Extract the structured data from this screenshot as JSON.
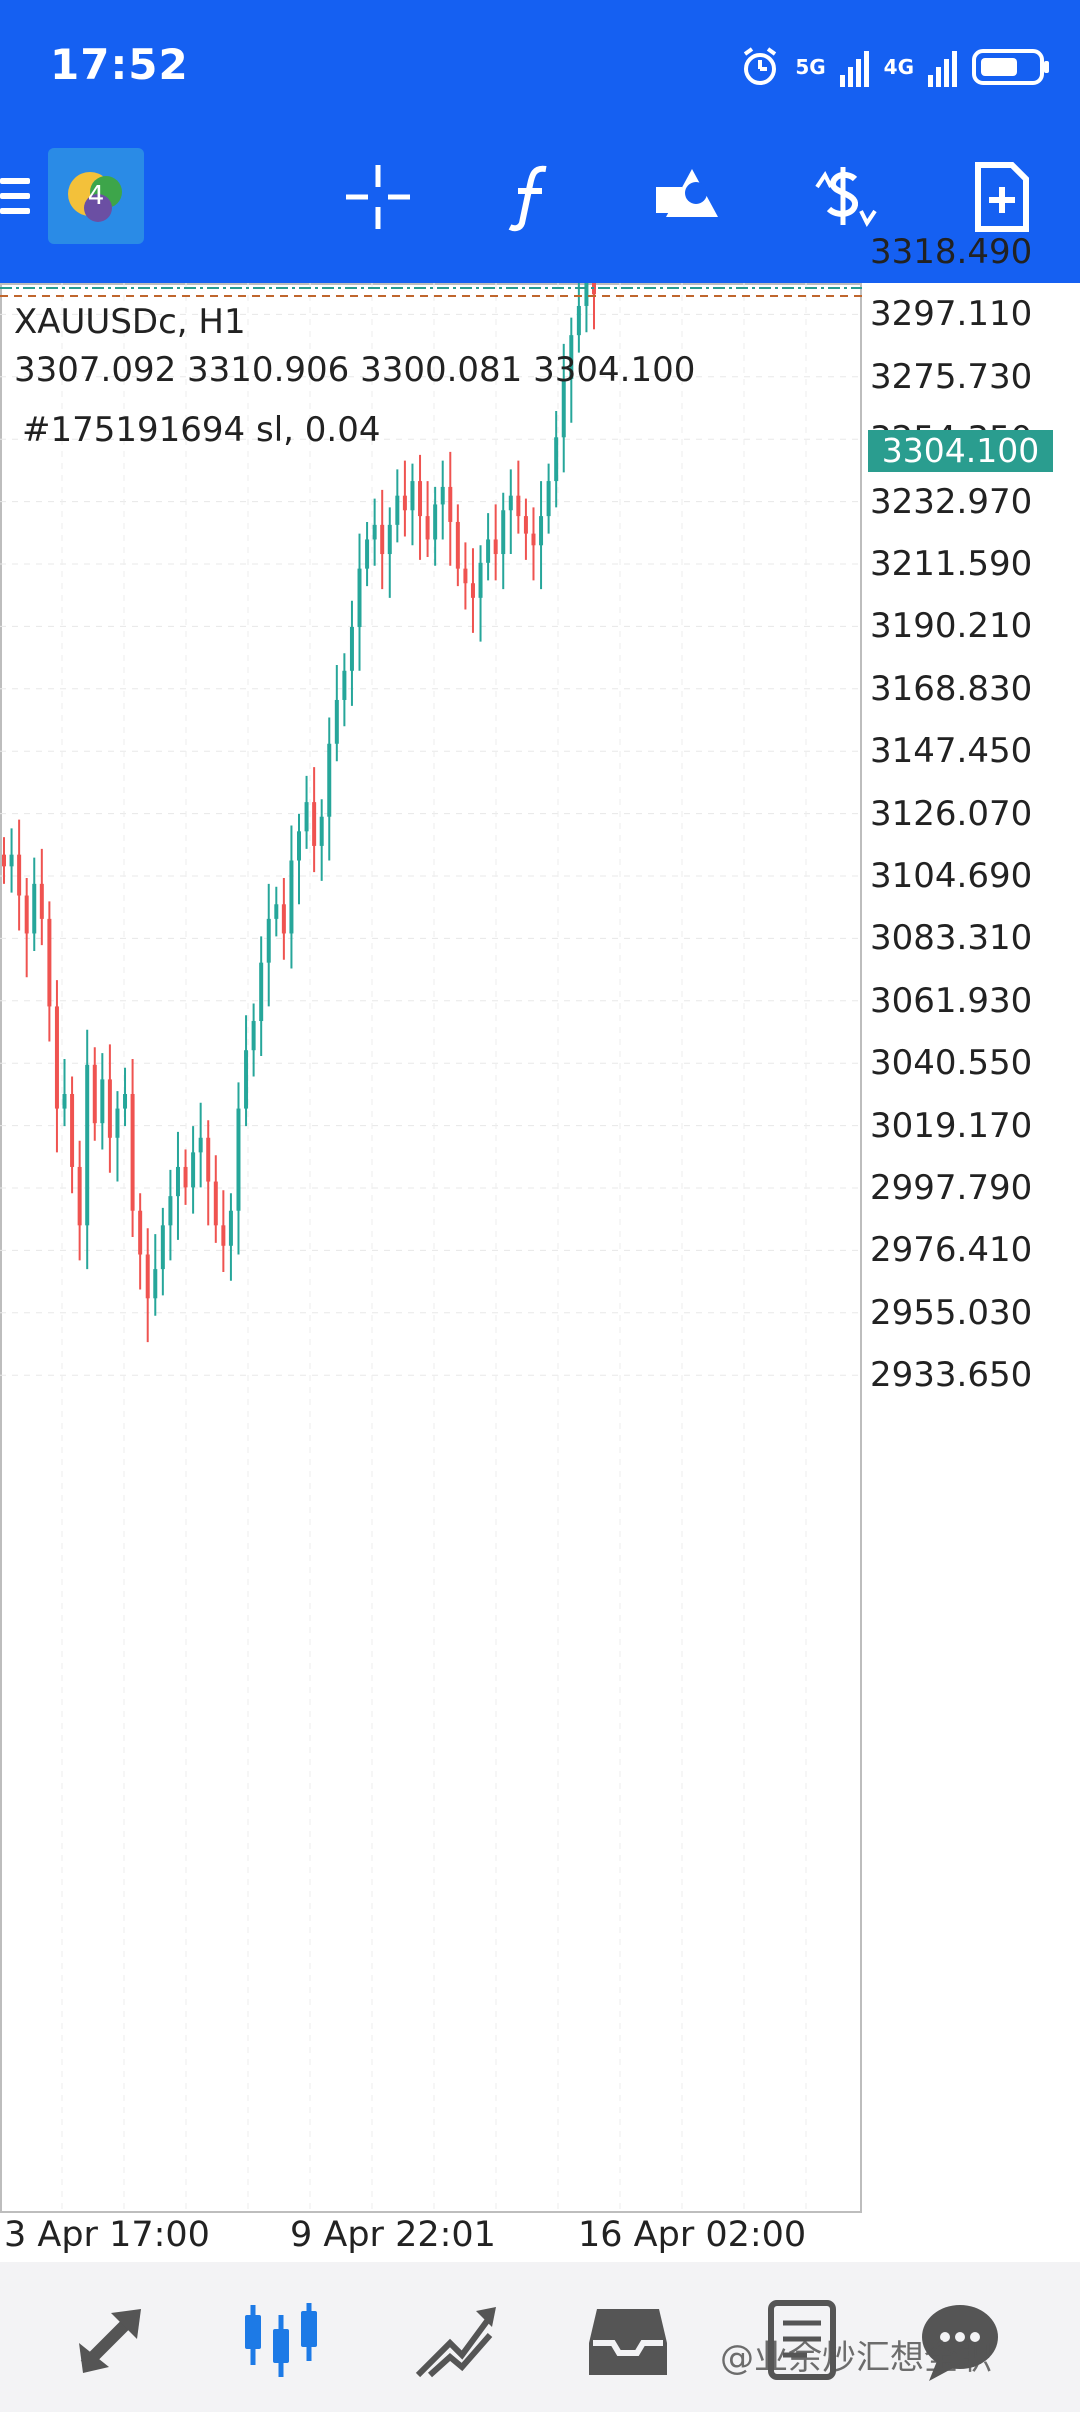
{
  "status_bar": {
    "time": "17:52",
    "network_1": "5G",
    "network_2": "4G",
    "icons": [
      "alarm-icon",
      "signal-icon",
      "signal-icon",
      "battery-icon"
    ]
  },
  "toolbar": {
    "buttons": [
      {
        "name": "menu-button",
        "icon": "hamburger-icon"
      },
      {
        "name": "app-logo",
        "icon": "mt4-logo-icon"
      },
      {
        "name": "crosshair-button",
        "icon": "crosshair-icon"
      },
      {
        "name": "indicators-button",
        "icon": "function-icon"
      },
      {
        "name": "objects-button",
        "icon": "shapes-icon"
      },
      {
        "name": "symbol-change-button",
        "icon": "dollar-icon"
      },
      {
        "name": "new-order-button",
        "icon": "new-document-icon"
      }
    ]
  },
  "chart": {
    "symbol_label": "XAUUSDc, H1",
    "ohlc_label": "3307.092 3310.906 3300.081 3304.100",
    "order_label": "#175191694 sl, 0.04",
    "current_price": "3304.100",
    "up_color": "#26a69a",
    "down_color": "#ef5350"
  },
  "chart_data": {
    "type": "candlestick",
    "price_ticks": [
      "3318.490",
      "3297.110",
      "3275.730",
      "3254.350",
      "3232.970",
      "3211.590",
      "3190.210",
      "3168.830",
      "3147.450",
      "3126.070",
      "3104.690",
      "3083.310",
      "3061.930",
      "3040.550",
      "3019.170",
      "2997.790",
      "2976.410",
      "2955.030",
      "2933.650"
    ],
    "time_ticks": [
      "3 Apr 17:00",
      "9 Apr 22:01",
      "16 Apr 02:00"
    ],
    "ylim": [
      2920,
      3330
    ],
    "close_path": [
      3108,
      3112,
      3098,
      3085,
      3102,
      3090,
      3060,
      3025,
      3030,
      3005,
      2985,
      3040,
      3020,
      3035,
      3015,
      3025,
      3030,
      2990,
      2975,
      2960,
      2970,
      2985,
      2995,
      3005,
      2998,
      3010,
      3015,
      3000,
      2985,
      2978,
      2990,
      3025,
      3045,
      3055,
      3075,
      3090,
      3095,
      3085,
      3110,
      3120,
      3130,
      3115,
      3125,
      3150,
      3165,
      3175,
      3190,
      3210,
      3220,
      3225,
      3215,
      3225,
      3235,
      3230,
      3240,
      3228,
      3220,
      3232,
      3238,
      3226,
      3210,
      3205,
      3200,
      3212,
      3220,
      3215,
      3230,
      3235,
      3228,
      3222,
      3218,
      3228,
      3240,
      3255,
      3275,
      3290,
      3300,
      3310,
      3304
    ]
  },
  "time_axis": [
    "3 Apr 17:00",
    "9 Apr 22:01",
    "16 Apr 02:00"
  ],
  "bottom_nav": {
    "items": [
      {
        "name": "quotes-tab",
        "icon": "quotes-icon"
      },
      {
        "name": "chart-tab",
        "icon": "candles-icon"
      },
      {
        "name": "trade-tab",
        "icon": "trend-icon"
      },
      {
        "name": "history-tab",
        "icon": "inbox-icon"
      },
      {
        "name": "news-tab",
        "icon": "news-icon"
      },
      {
        "name": "messages-tab",
        "icon": "chat-icon"
      }
    ],
    "watermark": "@业余炒汇想全职"
  }
}
